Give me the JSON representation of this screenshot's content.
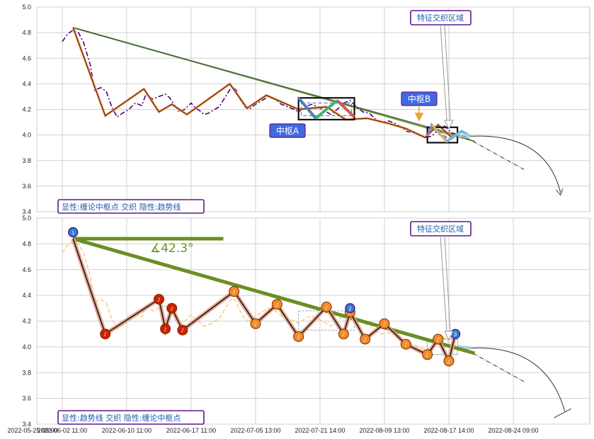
{
  "chart_data": [
    {
      "type": "line",
      "panel": "top",
      "legend": "显性:缠论中枢点 交织 隐性:趋势线",
      "callouts": {
        "feature": "特征交织区域",
        "pivot_a": "中枢A",
        "pivot_b": "中枢B"
      },
      "ylim": [
        3.4,
        5.0
      ],
      "yticks": [
        "5.0",
        "4.8",
        "4.6",
        "4.4",
        "4.2",
        "4.0",
        "3.8",
        "3.6",
        "3.4"
      ],
      "price_series": [
        [
          0,
          4.73
        ],
        [
          0.25,
          4.79
        ],
        [
          0.5,
          4.82
        ],
        [
          0.75,
          4.8
        ],
        [
          1.0,
          4.72
        ],
        [
          1.3,
          4.55
        ],
        [
          1.5,
          4.35
        ],
        [
          1.8,
          4.37
        ],
        [
          2.05,
          4.34
        ],
        [
          2.3,
          4.22
        ],
        [
          2.55,
          4.14
        ],
        [
          2.8,
          4.17
        ],
        [
          3.1,
          4.2
        ],
        [
          3.4,
          4.25
        ],
        [
          3.7,
          4.23
        ],
        [
          3.9,
          4.32
        ],
        [
          4.2,
          4.28
        ],
        [
          4.5,
          4.3
        ],
        [
          4.8,
          4.32
        ],
        [
          5.0,
          4.29
        ],
        [
          5.2,
          4.24
        ],
        [
          5.45,
          4.18
        ],
        [
          5.7,
          4.2
        ],
        [
          6.0,
          4.25
        ],
        [
          6.2,
          4.21
        ],
        [
          6.4,
          4.19
        ],
        [
          6.6,
          4.16
        ],
        [
          6.8,
          4.17
        ],
        [
          7.0,
          4.19
        ],
        [
          7.3,
          4.22
        ],
        [
          7.6,
          4.3
        ],
        [
          7.9,
          4.38
        ],
        [
          8.1,
          4.35
        ],
        [
          8.3,
          4.27
        ],
        [
          8.5,
          4.22
        ],
        [
          8.7,
          4.2
        ],
        [
          9.0,
          4.24
        ],
        [
          9.3,
          4.27
        ],
        [
          9.6,
          4.3
        ],
        [
          9.9,
          4.28
        ],
        [
          10.2,
          4.24
        ],
        [
          10.5,
          4.22
        ],
        [
          10.8,
          4.2
        ],
        [
          11.0,
          4.18
        ],
        [
          11.3,
          4.22
        ],
        [
          11.6,
          4.24
        ],
        [
          11.9,
          4.22
        ],
        [
          12.2,
          4.19
        ],
        [
          12.5,
          4.16
        ],
        [
          12.8,
          4.2
        ],
        [
          13.1,
          4.25
        ],
        [
          13.4,
          4.27
        ],
        [
          13.7,
          4.22
        ],
        [
          14.0,
          4.18
        ],
        [
          14.3,
          4.17
        ],
        [
          14.6,
          4.12
        ],
        [
          14.9,
          4.1
        ],
        [
          15.2,
          4.11
        ],
        [
          15.5,
          4.09
        ],
        [
          15.8,
          4.06
        ],
        [
          16.0,
          4.03
        ],
        [
          16.3,
          4.02
        ],
        [
          16.6,
          4.0
        ],
        [
          16.9,
          3.98
        ],
        [
          17.2,
          3.99
        ],
        [
          17.5,
          4.04
        ],
        [
          17.8,
          4.07
        ],
        [
          18.1,
          4.02
        ],
        [
          18.4,
          4.0
        ],
        [
          18.7,
          3.99
        ],
        [
          18.95,
          3.99
        ]
      ],
      "stroke_series": [
        [
          0.5,
          4.84
        ],
        [
          2.0,
          4.15
        ],
        [
          3.8,
          4.36
        ],
        [
          4.5,
          4.18
        ],
        [
          5.1,
          4.24
        ],
        [
          5.8,
          4.16
        ],
        [
          7.8,
          4.4
        ],
        [
          8.6,
          4.21
        ],
        [
          9.5,
          4.31
        ],
        [
          11.0,
          4.2
        ],
        [
          12.3,
          4.22
        ],
        [
          13.2,
          4.12
        ],
        [
          14.2,
          4.13
        ],
        [
          15.2,
          4.09
        ],
        [
          16.0,
          4.05
        ],
        [
          16.9,
          3.98
        ],
        [
          17.5,
          4.08
        ],
        [
          18.2,
          3.97
        ]
      ],
      "pivot_a": {
        "x": [
          11.0,
          13.6
        ],
        "y": [
          4.12,
          4.29
        ]
      },
      "pivot_b": {
        "x": [
          17.0,
          18.4
        ],
        "y": [
          3.94,
          4.06
        ]
      }
    },
    {
      "type": "line",
      "panel": "bottom",
      "legend": "显性:趋势线 交织 隐性:缠论中枢点",
      "callouts": {
        "feature": "特征交织区域",
        "angle": "∡42.3°"
      },
      "ylim": [
        3.4,
        5.0
      ],
      "yticks": [
        "5.0",
        "4.8",
        "4.6",
        "4.4",
        "4.2",
        "4.0",
        "3.8",
        "3.6",
        "3.4"
      ],
      "xticks": [
        "2022-05-25 09:00",
        "2022-06-02 11:00",
        "2022-06-10 11:00",
        "2022-06-17 11:00",
        "2022-07-05 13:00",
        "2022-07-21 14:00",
        "2022-08-09 13:00",
        "2022-08-17 14:00",
        "2022-08-24 09:00"
      ],
      "markers_numbered": [
        "1",
        "2",
        "3"
      ],
      "zigzag_points": [
        [
          0.5,
          4.84
        ],
        [
          2.0,
          4.1
        ],
        [
          4.5,
          4.37
        ],
        [
          4.8,
          4.14
        ],
        [
          5.1,
          4.3
        ],
        [
          5.6,
          4.13
        ],
        [
          8.0,
          4.43
        ],
        [
          9.0,
          4.18
        ],
        [
          10.0,
          4.33
        ],
        [
          11.0,
          4.08
        ],
        [
          12.3,
          4.31
        ],
        [
          13.1,
          4.1
        ],
        [
          13.4,
          4.27
        ],
        [
          14.1,
          4.06
        ],
        [
          15.0,
          4.18
        ],
        [
          16.0,
          4.02
        ],
        [
          17.0,
          3.94
        ],
        [
          17.5,
          4.06
        ],
        [
          18.0,
          3.89
        ],
        [
          18.3,
          4.1
        ]
      ]
    }
  ]
}
